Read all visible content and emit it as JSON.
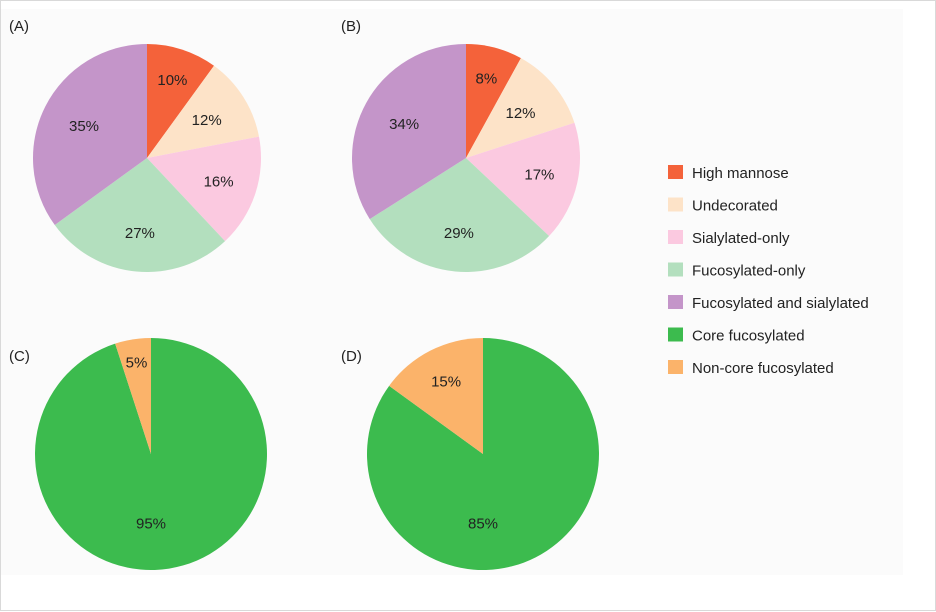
{
  "chart_data": [
    {
      "type": "pie",
      "panel_label": "(A)",
      "slices": [
        {
          "category": "High mannose",
          "value": 10,
          "label": "10%",
          "color": "#f4623a"
        },
        {
          "category": "Undecorated",
          "value": 12,
          "label": "12%",
          "color": "#fde3c8"
        },
        {
          "category": "Sialylated-only",
          "value": 16,
          "label": "16%",
          "color": "#fbc9e0"
        },
        {
          "category": "Fucosylated-only",
          "value": 27,
          "label": "27%",
          "color": "#b3dfbe"
        },
        {
          "category": "Fucosylated and sialylated",
          "value": 35,
          "label": "35%",
          "color": "#c495c9"
        }
      ],
      "start_angle_deg": 0,
      "direction": "clockwise"
    },
    {
      "type": "pie",
      "panel_label": "(B)",
      "slices": [
        {
          "category": "High mannose",
          "value": 8,
          "label": "8%",
          "color": "#f4623a"
        },
        {
          "category": "Undecorated",
          "value": 12,
          "label": "12%",
          "color": "#fde3c8"
        },
        {
          "category": "Sialylated-only",
          "value": 17,
          "label": "17%",
          "color": "#fbc9e0"
        },
        {
          "category": "Fucosylated-only",
          "value": 29,
          "label": "29%",
          "color": "#b3dfbe"
        },
        {
          "category": "Fucosylated and sialylated",
          "value": 34,
          "label": "34%",
          "color": "#c495c9"
        }
      ],
      "start_angle_deg": 0,
      "direction": "clockwise"
    },
    {
      "type": "pie",
      "panel_label": "(C)",
      "slices": [
        {
          "category": "Core fucosylated",
          "value": 95,
          "label": "95%",
          "color": "#3cbb4e"
        },
        {
          "category": "Non-core fucosylated",
          "value": 5,
          "label": "5%",
          "color": "#fbb36a"
        }
      ],
      "start_angle_deg": 0,
      "direction": "clockwise"
    },
    {
      "type": "pie",
      "panel_label": "(D)",
      "slices": [
        {
          "category": "Core fucosylated",
          "value": 85,
          "label": "85%",
          "color": "#3cbb4e"
        },
        {
          "category": "Non-core fucosylated",
          "value": 15,
          "label": "15%",
          "color": "#fbb36a"
        }
      ],
      "start_angle_deg": 0,
      "direction": "clockwise"
    }
  ],
  "legend": {
    "placement": "right",
    "items": [
      {
        "label": "High mannose",
        "color": "#f4623a"
      },
      {
        "label": "Undecorated",
        "color": "#fde3c8"
      },
      {
        "label": "Sialylated-only",
        "color": "#fbc9e0"
      },
      {
        "label": "Fucosylated-only",
        "color": "#b3dfbe"
      },
      {
        "label": "Fucosylated and sialylated",
        "color": "#c495c9"
      },
      {
        "label": "Core fucosylated",
        "color": "#3cbb4e"
      },
      {
        "label": "Non-core fucosylated",
        "color": "#fbb36a"
      }
    ]
  }
}
